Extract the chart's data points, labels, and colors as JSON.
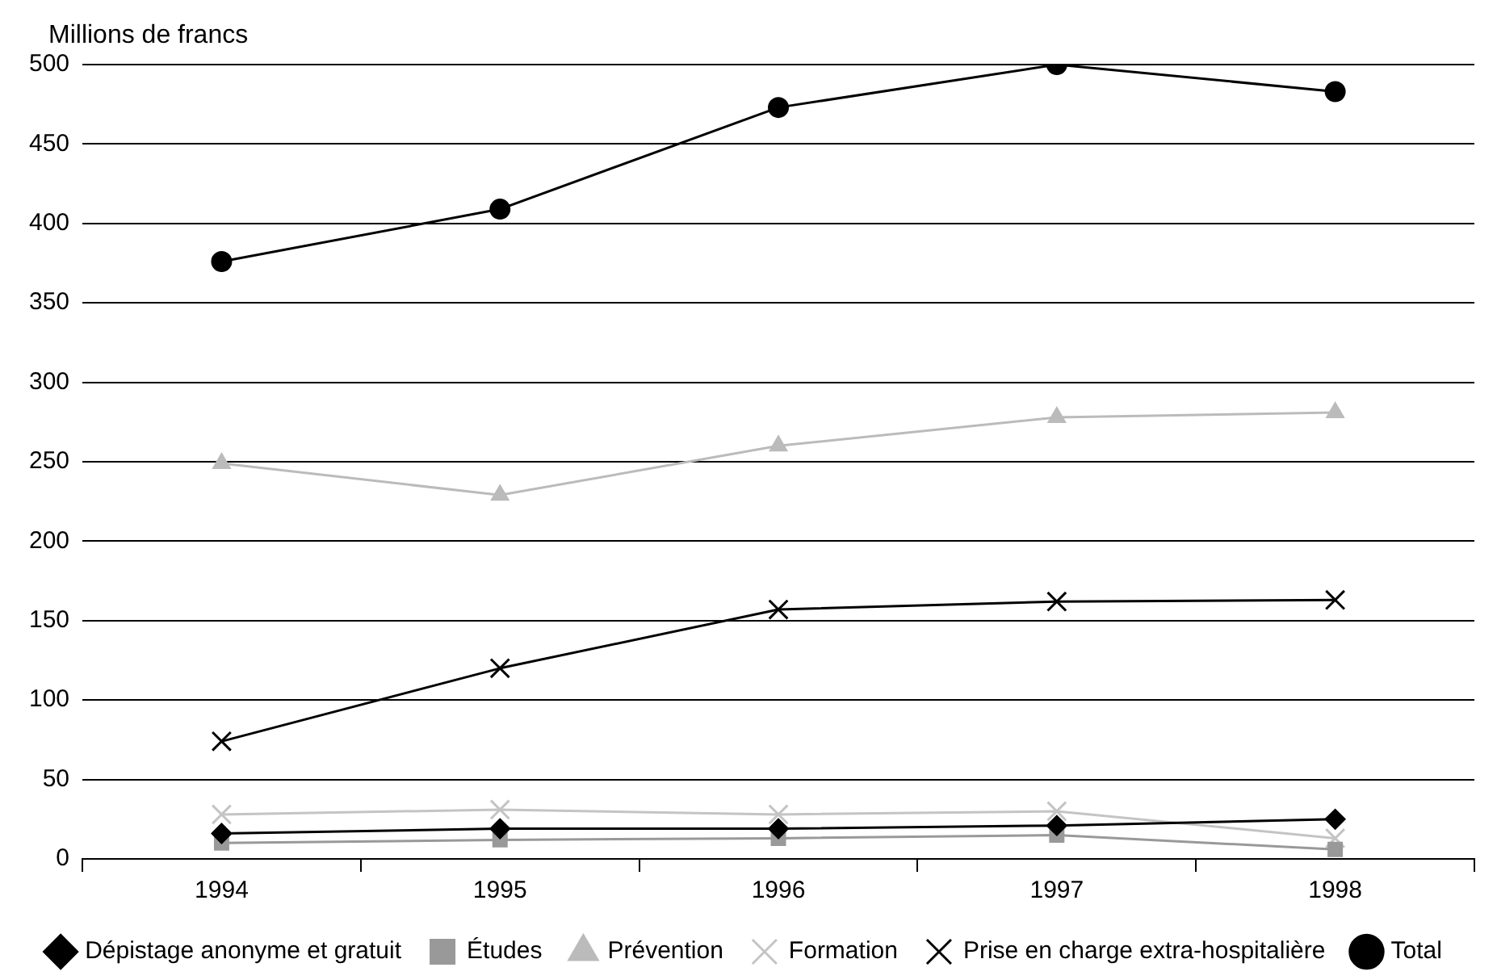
{
  "chart_data": {
    "type": "line",
    "ylabel": "Millions de francs",
    "categories": [
      "1994",
      "1995",
      "1996",
      "1997",
      "1998"
    ],
    "ylim": [
      0,
      500
    ],
    "yticks": [
      0,
      50,
      100,
      150,
      200,
      250,
      300,
      350,
      400,
      450,
      500
    ],
    "grid": "y",
    "legend": "bottom",
    "line_style": "solid",
    "series": [
      {
        "name": "Dépistage anonyme et gratuit",
        "color": "#000000",
        "marker": "diamond",
        "values": [
          16,
          19,
          19,
          21,
          25
        ]
      },
      {
        "name": "Études",
        "color": "#999999",
        "marker": "square",
        "values": [
          10,
          12,
          13,
          15,
          6
        ]
      },
      {
        "name": "Prévention",
        "color": "#bbbbbb",
        "marker": "triangle",
        "values": [
          249,
          229,
          260,
          278,
          281
        ]
      },
      {
        "name": "Formation",
        "color": "#c4c4c4",
        "marker": "cross",
        "values": [
          28,
          31,
          28,
          30,
          13
        ]
      },
      {
        "name": "Prise en charge extra-hospitalière",
        "color": "#000000",
        "marker": "cross",
        "values": [
          74,
          120,
          157,
          162,
          163
        ]
      },
      {
        "name": "Total",
        "color": "#000000",
        "marker": "circle",
        "values": [
          376,
          409,
          473,
          500,
          483
        ]
      }
    ]
  }
}
